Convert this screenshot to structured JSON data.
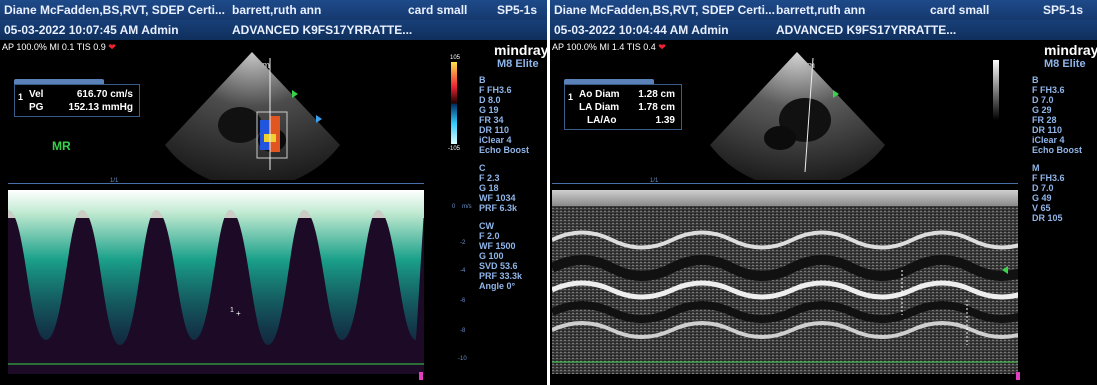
{
  "left": {
    "header": {
      "operator": "Diane McFadden,BS,RVT, SDEP Certi...",
      "patient": "barrett,ruth ann",
      "preset": "card small",
      "probe": "SP5-1s",
      "datetime_user": "05-03-2022 10:07:45 AM Admin",
      "id": "ADVANCED K9FS17YRRATTE..."
    },
    "ap_line": "AP 100.0%  MI 0.1  TIS 0.9",
    "brand": "mindray",
    "model": "M8 Elite",
    "measurement": {
      "index": "1",
      "rows": [
        {
          "label": "Vel",
          "value": "616.70 cm/s"
        },
        {
          "label": "PG",
          "value": "152.13 mmHg"
        }
      ]
    },
    "mr_label": "MR",
    "colorbar": {
      "top": "105",
      "bottom": "-105"
    },
    "params": {
      "B": [
        "B",
        "F FH3.6",
        "D 8.0",
        "G 19",
        "FR 34",
        "DR 110",
        "iClear 4",
        "Echo Boost"
      ],
      "C": [
        "C",
        "F 2.3",
        "G 18",
        "WF 1034",
        "PRF 6.3k"
      ],
      "CW": [
        "CW",
        "F 2.0",
        "WF 1500",
        "G 100",
        "SVD 53.6",
        "PRF 33.3k",
        "Angle 0°"
      ]
    },
    "scale_unit": "m/s",
    "scale_ticks": [
      "0",
      "-2",
      "-4",
      "-6",
      "-8",
      "-10"
    ],
    "ruler_marker": "1/1",
    "cursor_label": "1"
  },
  "right": {
    "header": {
      "operator": "Diane McFadden,BS,RVT, SDEP Certi...",
      "patient": "barrett,ruth ann",
      "preset": "card small",
      "probe": "SP5-1s",
      "datetime_user": "05-03-2022 10:04:44 AM Admin",
      "id": "ADVANCED K9FS17YRRATTE..."
    },
    "ap_line": "AP 100.0%  MI 1.4  TIS 0.4",
    "brand": "mindray",
    "model": "M8 Elite",
    "measurement": {
      "index": "1",
      "rows": [
        {
          "label": "Ao Diam",
          "value": "1.28 cm"
        },
        {
          "label": "LA Diam",
          "value": "1.78 cm"
        },
        {
          "label": "LA/Ao",
          "value": "1.39"
        }
      ]
    },
    "params": {
      "B": [
        "B",
        "F FH3.6",
        "D 7.0",
        "G 29",
        "FR 28",
        "DR 110",
        "iClear 4",
        "Echo Boost"
      ],
      "M": [
        "M",
        "F FH3.6",
        "D 7.0",
        "G 49",
        "V 65",
        "DR 105"
      ]
    },
    "ruler_marker": "1/1"
  },
  "colors": {
    "header_blue": "#1e4a8a",
    "param_blue": "#8fb5e8",
    "mr_green": "#39d24a",
    "heart_red": "#e22233"
  }
}
